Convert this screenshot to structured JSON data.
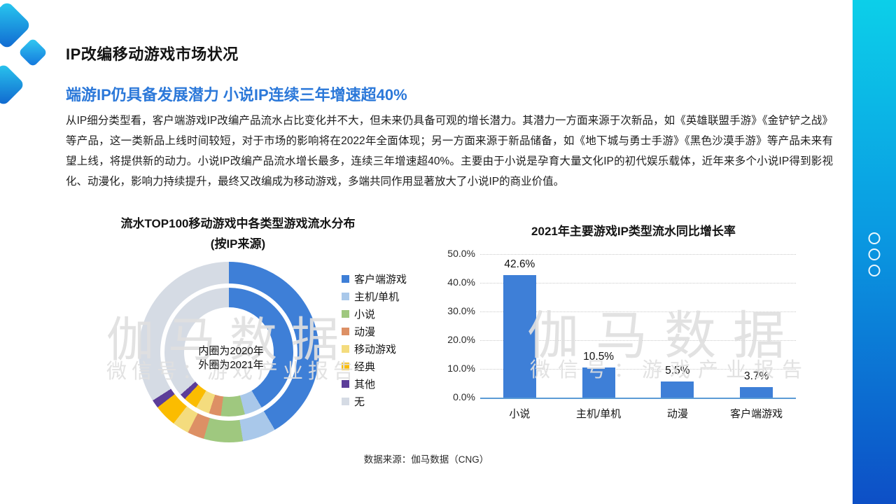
{
  "header": {
    "title": "IP改编移动游戏市场状况",
    "subtitle": "端游IP仍具备发展潜力  小说IP连续三年增速超40%"
  },
  "body": {
    "text": "从IP细分类型看，客户端游戏IP改编产品流水占比变化并不大，但未来仍具备可观的增长潜力。其潜力一方面来源于次新品，如《英雄联盟手游》《金铲铲之战》等产品，这一类新品上线时间较短，对于市场的影响将在2022年全面体现；另一方面来源于新品储备，如《地下城与勇士手游》《黑色沙漠手游》等产品未来有望上线，将提供新的动力。小说IP改编产品流水增长最多，连续三年增速超40%。主要由于小说是孕育大量文化IP的初代娱乐载体，近年来多个小说IP得到影视化、动漫化，影响力持续提升，最终又改编成为移动游戏，多端共同作用显著放大了小说IP的商业价值。"
  },
  "watermark": {
    "line1": "伽马数据",
    "line2": "微信号：游戏产业报告"
  },
  "source": {
    "text": "数据来源：伽马数据（CNG）"
  },
  "chart_data": [
    {
      "type": "donut",
      "title": "流水TOP100移动游戏中各类型游戏流水分布",
      "subtitle": "(按IP来源)",
      "center_note": [
        "内圈为2020年",
        "外圈为2021年"
      ],
      "categories": [
        "客户端游戏",
        "主机/单机",
        "小说",
        "动漫",
        "移动游戏",
        "经典",
        "其他",
        "无"
      ],
      "colors": [
        "#3E7FD7",
        "#A9C8EA",
        "#9FC87F",
        "#DD9065",
        "#F4DC7E",
        "#FBBC00",
        "#5C3D99",
        "#D5DBE4"
      ],
      "series": [
        {
          "name": "2020年（内圈）",
          "ring": "inner",
          "values": [
            41.5,
            4.5,
            6.0,
            3.0,
            3.5,
            3.5,
            1.5,
            36.5
          ]
        },
        {
          "name": "2021年（外圈）",
          "ring": "outer",
          "values": [
            41.5,
            6.0,
            7.0,
            3.0,
            3.0,
            4.0,
            1.5,
            34.0
          ]
        }
      ],
      "legend_position": "right",
      "values_are_estimates_percent": true
    },
    {
      "type": "bar",
      "title": "2021年主要游戏IP类型流水同比增长率",
      "categories": [
        "小说",
        "主机/单机",
        "动漫",
        "客户端游戏"
      ],
      "values": [
        42.6,
        10.5,
        5.5,
        3.7
      ],
      "data_labels": [
        "42.6%",
        "10.5%",
        "5.5%",
        "3.7%"
      ],
      "ylim": [
        0,
        50
      ],
      "yticks": [
        "50.0%",
        "40.0%",
        "30.0%",
        "20.0%",
        "10.0%",
        "0.0%"
      ],
      "grid": "dotted-horizontal",
      "bar_color": "#3E7FD7",
      "axis_color": "#5B9BD5",
      "legend_position": "none"
    }
  ]
}
